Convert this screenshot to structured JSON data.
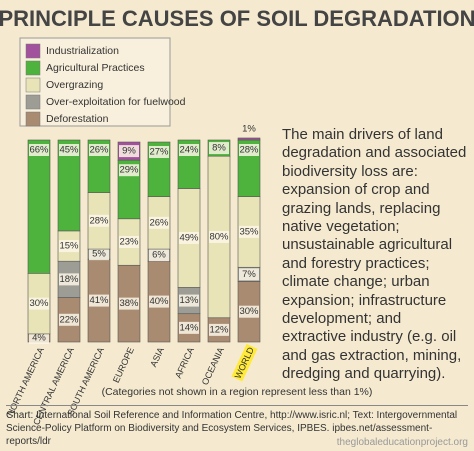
{
  "chart_data": {
    "type": "bar",
    "stacked": true,
    "title": "PRINCIPLE CAUSES OF SOIL DEGRADATION",
    "categories": [
      "NORTH AMERICA",
      "CENTRAL AMERICA",
      "SOUTH AMERICA",
      "EUROPE",
      "ASIA",
      "AFRICA",
      "OCEANIA",
      "WORLD"
    ],
    "highlight_category": "WORLD",
    "series": [
      {
        "name": "Industrialization",
        "color": "#a2529c",
        "values": [
          null,
          null,
          null,
          9,
          null,
          null,
          null,
          1
        ],
        "value_labels": [
          null,
          null,
          null,
          "9%",
          null,
          null,
          null,
          "1%"
        ]
      },
      {
        "name": "Agricultural Practices",
        "color": "#4db33d",
        "values": [
          66,
          45,
          26,
          29,
          27,
          24,
          8,
          28
        ],
        "value_labels": [
          "66%",
          "45%",
          "26%",
          "29%",
          "27%",
          "24%",
          "8%",
          "28%"
        ]
      },
      {
        "name": "Overgrazing",
        "color": "#e9e4b8",
        "values": [
          30,
          15,
          28,
          23,
          26,
          49,
          80,
          35
        ],
        "value_labels": [
          "30%",
          "15%",
          "28%",
          "23%",
          "26%",
          "49%",
          "80%",
          "35%"
        ]
      },
      {
        "name": "Over-exploitation for fuelwood",
        "color": "#9d9d96",
        "values": [
          null,
          18,
          5,
          null,
          6,
          13,
          null,
          7
        ],
        "value_labels": [
          null,
          "18%",
          "5%",
          null,
          "6%",
          "13%",
          null,
          "7%"
        ]
      },
      {
        "name": "Deforestation",
        "color": "#a98b72",
        "values": [
          4,
          22,
          41,
          38,
          40,
          14,
          12,
          30
        ],
        "value_labels": [
          "4%",
          "22%",
          "41%",
          "38%",
          "40%",
          "14%",
          "12%",
          "30%"
        ]
      }
    ],
    "ylim": [
      0,
      100
    ],
    "description": "The main drivers of land degradation and associated biodiversity loss are: expansion of crop and grazing lands, replacing native vegetation; unsustainable agricultural and forestry practices; climate change; urban expansion; infrastructure development; and extractive industry (e.g. oil and gas extraction, mining, dredging and quarrying).",
    "note": "(Categories not shown in a region represent less than 1%)",
    "source": "Chart: International  Soil Reference and Information Centre, http://www.isric.nl; Text: Intergovernmental Science-Policy Platform on Biodiversity and Ecosystem Services, IPBES. ipbes.net/assessment-reports/ldr",
    "watermark": "theglobaleducationproject.org"
  }
}
